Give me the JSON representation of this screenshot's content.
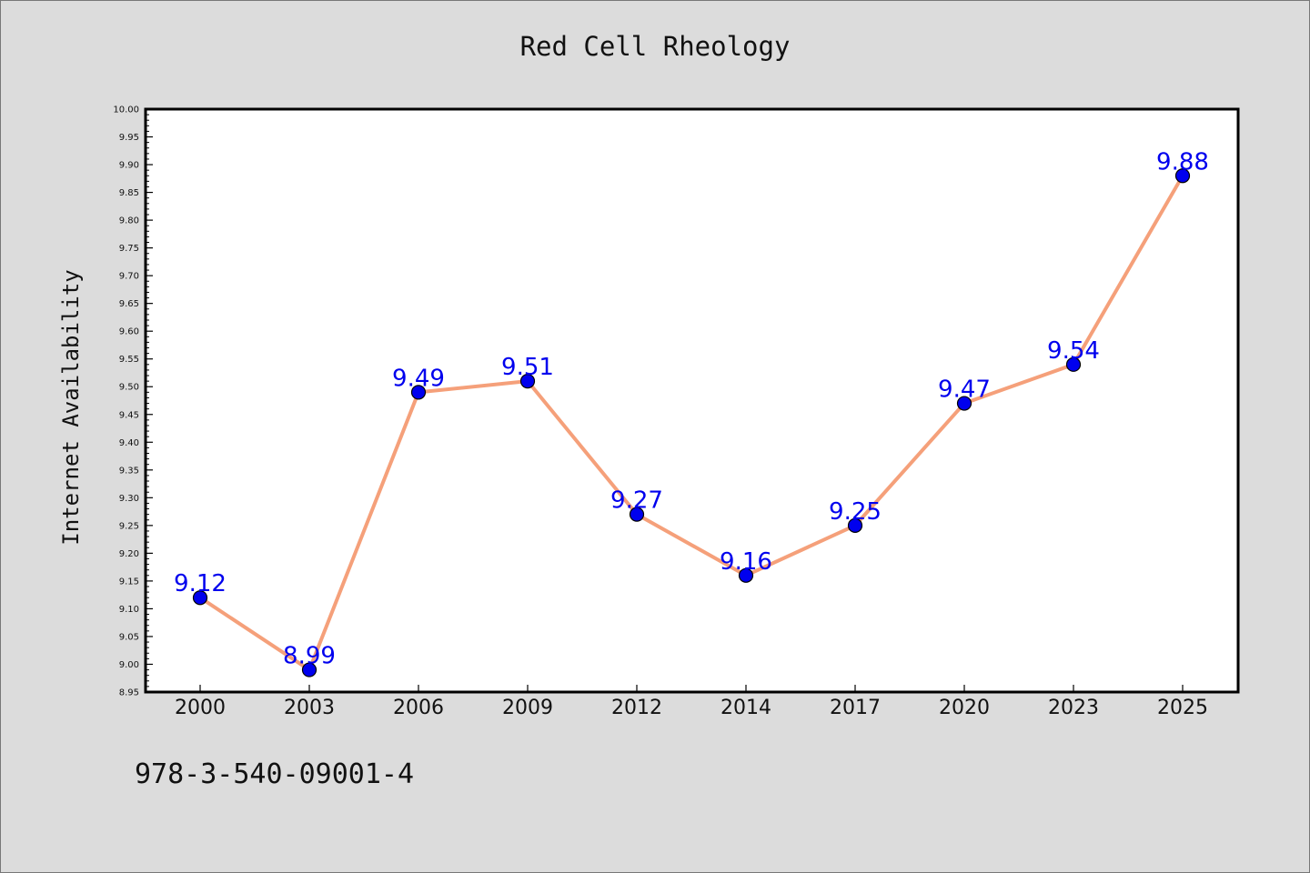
{
  "chart_data": {
    "type": "line",
    "title": "Red Cell Rheology",
    "xlabel": "",
    "ylabel": "Internet Availability",
    "categories": [
      "2000",
      "2003",
      "2006",
      "2009",
      "2012",
      "2014",
      "2017",
      "2020",
      "2023",
      "2025"
    ],
    "series": [
      {
        "values": [
          9.12,
          8.99,
          9.49,
          9.51,
          9.27,
          9.16,
          9.25,
          9.47,
          9.54,
          9.88
        ],
        "labels": [
          "9.12",
          "8.99",
          "9.49",
          "9.51",
          "9.27",
          "9.16",
          "9.25",
          "9.47",
          "9.54",
          "9.88"
        ]
      }
    ],
    "ylim": [
      8.95,
      10.0
    ],
    "yticks": [
      "8.95",
      "9.00",
      "9.05",
      "9.10",
      "9.15",
      "9.20",
      "9.25",
      "9.30",
      "9.35",
      "9.40",
      "9.45",
      "9.50",
      "9.55",
      "9.60",
      "9.65",
      "9.70",
      "9.75",
      "9.80",
      "9.85",
      "9.90",
      "9.95",
      "10.00"
    ],
    "grid": false,
    "legend": "none",
    "colors": {
      "line": "#f5a07a",
      "marker": "#0000ee",
      "label": "#0000ee",
      "background": "#dcdcdc",
      "plot_background": "#ffffff"
    }
  },
  "footer": {
    "code": "978-3-540-09001-4"
  }
}
